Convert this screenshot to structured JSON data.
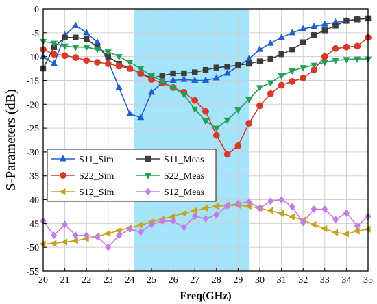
{
  "chart_data": {
    "type": "line",
    "xlabel": "Freq(GHz)",
    "ylabel": "S-Parameters (dB)",
    "xlim": [
      20,
      35
    ],
    "ylim": [
      -55,
      0
    ],
    "xticks": [
      20,
      21,
      22,
      23,
      24,
      25,
      26,
      27,
      28,
      29,
      30,
      31,
      32,
      33,
      34,
      35
    ],
    "yticks": [
      0,
      -5,
      -10,
      -15,
      -20,
      -25,
      -30,
      -35,
      -40,
      -45,
      -50,
      -55
    ],
    "highlight_band": {
      "x0": 24.2,
      "x1": 29.5,
      "color": "#a6e4fb"
    },
    "legend_position": "lower-left",
    "series": [
      {
        "name": "S11_Sim",
        "color": "#1f5fd1",
        "marker": "triangle-up",
        "x": [
          20,
          20.5,
          21,
          21.5,
          22,
          22.5,
          23,
          23.5,
          24,
          24.5,
          25,
          25.5,
          26,
          26.5,
          27,
          27.5,
          28,
          28.5,
          29,
          29.5,
          30,
          30.5,
          31,
          31.5,
          32,
          32.5,
          33,
          33.5,
          34,
          34.5,
          35
        ],
        "values": [
          -10,
          -11.5,
          -5.5,
          -3.5,
          -5,
          -7,
          -11,
          -16.5,
          -22,
          -22.8,
          -17.5,
          -15.5,
          -15,
          -14.8,
          -15,
          -15,
          -14.5,
          -13.5,
          -12,
          -10.5,
          -8.5,
          -7.2,
          -6,
          -5,
          -4.2,
          -3.7,
          -3.2,
          -2.8,
          -2.5,
          -2.2,
          -2
        ]
      },
      {
        "name": "S11_Meas",
        "color": "#3c3c3c",
        "marker": "square",
        "x": [
          20,
          20.5,
          21,
          21.5,
          22,
          22.5,
          23,
          23.5,
          24,
          24.5,
          25,
          25.5,
          26,
          26.5,
          27,
          27.5,
          28,
          28.5,
          29,
          29.5,
          30,
          30.5,
          31,
          31.5,
          32,
          32.5,
          33,
          33.5,
          34,
          34.5,
          35
        ],
        "values": [
          -12.5,
          -8,
          -6,
          -6,
          -6.3,
          -8,
          -10,
          -11.5,
          -12.5,
          -13.5,
          -14.5,
          -14,
          -13.5,
          -13.5,
          -13.3,
          -12.8,
          -12.3,
          -12.1,
          -11.8,
          -11.5,
          -11,
          -10.5,
          -9.5,
          -8.5,
          -7,
          -5.5,
          -4.5,
          -3.5,
          -2.5,
          -2.2,
          -2
        ]
      },
      {
        "name": "S22_Sim",
        "color": "#d83a2a",
        "marker": "circle",
        "x": [
          20,
          20.5,
          21,
          21.5,
          22,
          22.5,
          23,
          23.5,
          24,
          24.5,
          25,
          25.5,
          26,
          26.5,
          27,
          27.5,
          28,
          28.5,
          29,
          29.5,
          30,
          30.5,
          31,
          31.5,
          32,
          32.5,
          33,
          33.5,
          34,
          34.5,
          35
        ],
        "values": [
          -8.5,
          -9.5,
          -9.8,
          -10.2,
          -10.8,
          -11.2,
          -11.5,
          -12,
          -12.5,
          -13.5,
          -14.8,
          -15.5,
          -16.5,
          -17.5,
          -19.2,
          -21.5,
          -26.5,
          -30.5,
          -28.7,
          -24,
          -20.3,
          -17.8,
          -16,
          -15.2,
          -14.5,
          -12.8,
          -10,
          -8.3,
          -8,
          -7.8,
          -6
        ]
      },
      {
        "name": "S22_Meas",
        "color": "#22a05a",
        "marker": "triangle-down",
        "x": [
          20,
          20.5,
          21,
          21.5,
          22,
          22.5,
          23,
          23.5,
          24,
          24.5,
          25,
          25.5,
          26,
          26.5,
          27,
          27.5,
          28,
          28.5,
          29,
          29.5,
          30,
          30.5,
          31,
          31.5,
          32,
          32.5,
          33,
          33.5,
          34,
          34.5,
          35
        ],
        "values": [
          -6.8,
          -7.2,
          -7.8,
          -8,
          -8,
          -8.5,
          -9,
          -10,
          -11.2,
          -12.5,
          -14,
          -15.2,
          -16.5,
          -18,
          -21,
          -23.5,
          -25,
          -23.3,
          -21.2,
          -19,
          -16.5,
          -15.5,
          -14,
          -13,
          -12.3,
          -11.8,
          -11.2,
          -10.8,
          -10.6,
          -10.5,
          -10.5
        ]
      },
      {
        "name": "S12_Sim",
        "color": "#c4a41d",
        "marker": "triangle-left",
        "x": [
          20,
          20.5,
          21,
          21.5,
          22,
          22.5,
          23,
          23.5,
          24,
          24.5,
          25,
          25.5,
          26,
          26.5,
          27,
          27.5,
          28,
          28.5,
          29,
          29.5,
          30,
          30.5,
          31,
          31.5,
          32,
          32.5,
          33,
          33.5,
          34,
          34.5,
          35
        ],
        "values": [
          -49.3,
          -49.2,
          -48.9,
          -48.6,
          -48.2,
          -47.7,
          -47.1,
          -46.5,
          -45.9,
          -45.3,
          -44.7,
          -44.1,
          -43.5,
          -42.9,
          -42.3,
          -41.8,
          -41.4,
          -41.2,
          -41.2,
          -41.4,
          -41.8,
          -42.3,
          -42.9,
          -43.6,
          -44.3,
          -45.2,
          -46.1,
          -46.9,
          -47.2,
          -46.6,
          -46.2
        ]
      },
      {
        "name": "S12_Meas",
        "color": "#c27de8",
        "marker": "diamond",
        "x": [
          20,
          20.5,
          21,
          21.5,
          22,
          22.5,
          23,
          23.5,
          24,
          24.5,
          25,
          25.5,
          26,
          26.5,
          27,
          27.5,
          28,
          28.5,
          29,
          29.5,
          30,
          30.5,
          31,
          31.5,
          32,
          32.5,
          33,
          33.5,
          34,
          34.5,
          35
        ],
        "values": [
          -44.5,
          -47.5,
          -45.2,
          -47.5,
          -47.5,
          -47.8,
          -50,
          -47.5,
          -46.2,
          -46.8,
          -45.2,
          -44.5,
          -44.5,
          -45.8,
          -43.5,
          -44,
          -43.2,
          -41.3,
          -40.8,
          -40.5,
          -41.8,
          -40.3,
          -40,
          -41.5,
          -44.8,
          -42,
          -42,
          -44.2,
          -42.8,
          -45.5,
          -43.5
        ]
      }
    ]
  }
}
